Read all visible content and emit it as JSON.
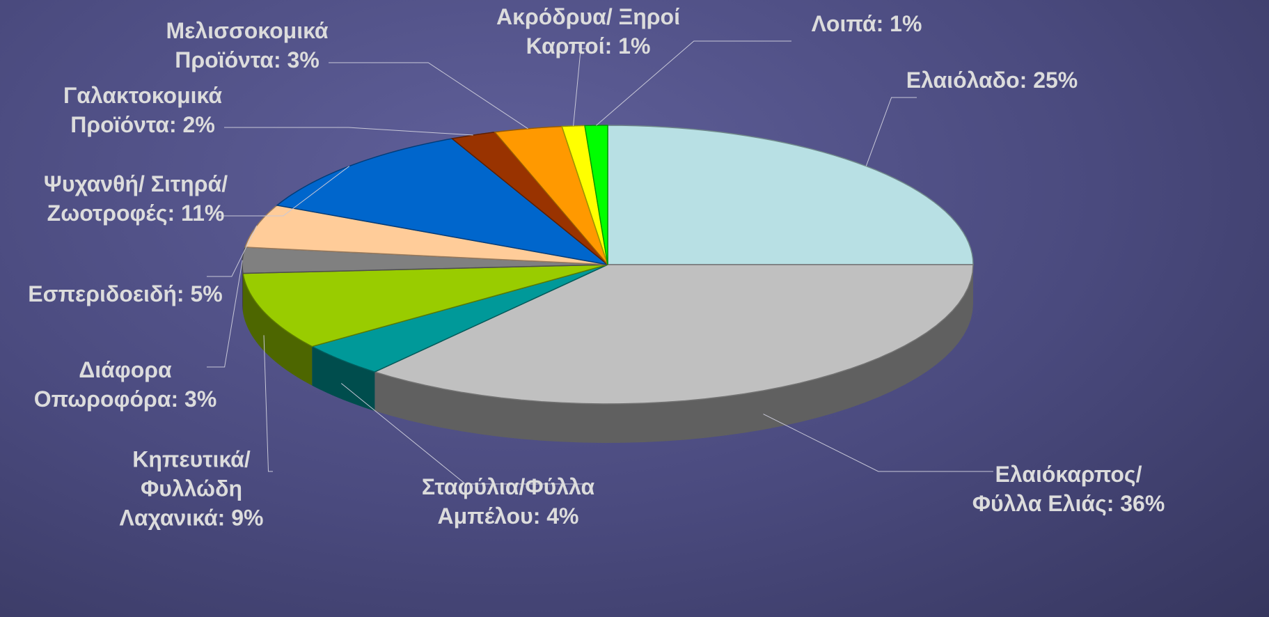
{
  "chart_data": {
    "type": "pie3d",
    "categories": [
      "Ελαιόλαδο: 25%",
      "Ελαιόκαρπος/\nΦύλλα Ελιάς: 36%",
      "Σταφύλια/Φύλλα\nΑμπέλου: 4%",
      "Κηπευτικά/\nΦυλλώδη\nΛαχανικά: 9%",
      "Διάφορα\nΟπωροφόρα: 3%",
      "Εσπεριδοειδή: 5%",
      "Ψυχανθή/ Σιτηρά/\nΖωοτροφές: 11%",
      "Γαλακτοκομικά\nΠροϊόντα: 2%",
      "Μελισσοκομικά\nΠροϊόντα: 3%",
      "Ακρόδρυα/ Ξηροί\nΚαρποί: 1%",
      "Λοιπά: 1%"
    ],
    "values": [
      25,
      36,
      4,
      9,
      3,
      5,
      11,
      2,
      3,
      1,
      1
    ],
    "colors": [
      "#b8e0e4",
      "#c0c0c0",
      "#009999",
      "#99cc00",
      "#808080",
      "#ffcc99",
      "#0066cc",
      "#993300",
      "#ff9900",
      "#ffff00",
      "#00ff00"
    ]
  }
}
